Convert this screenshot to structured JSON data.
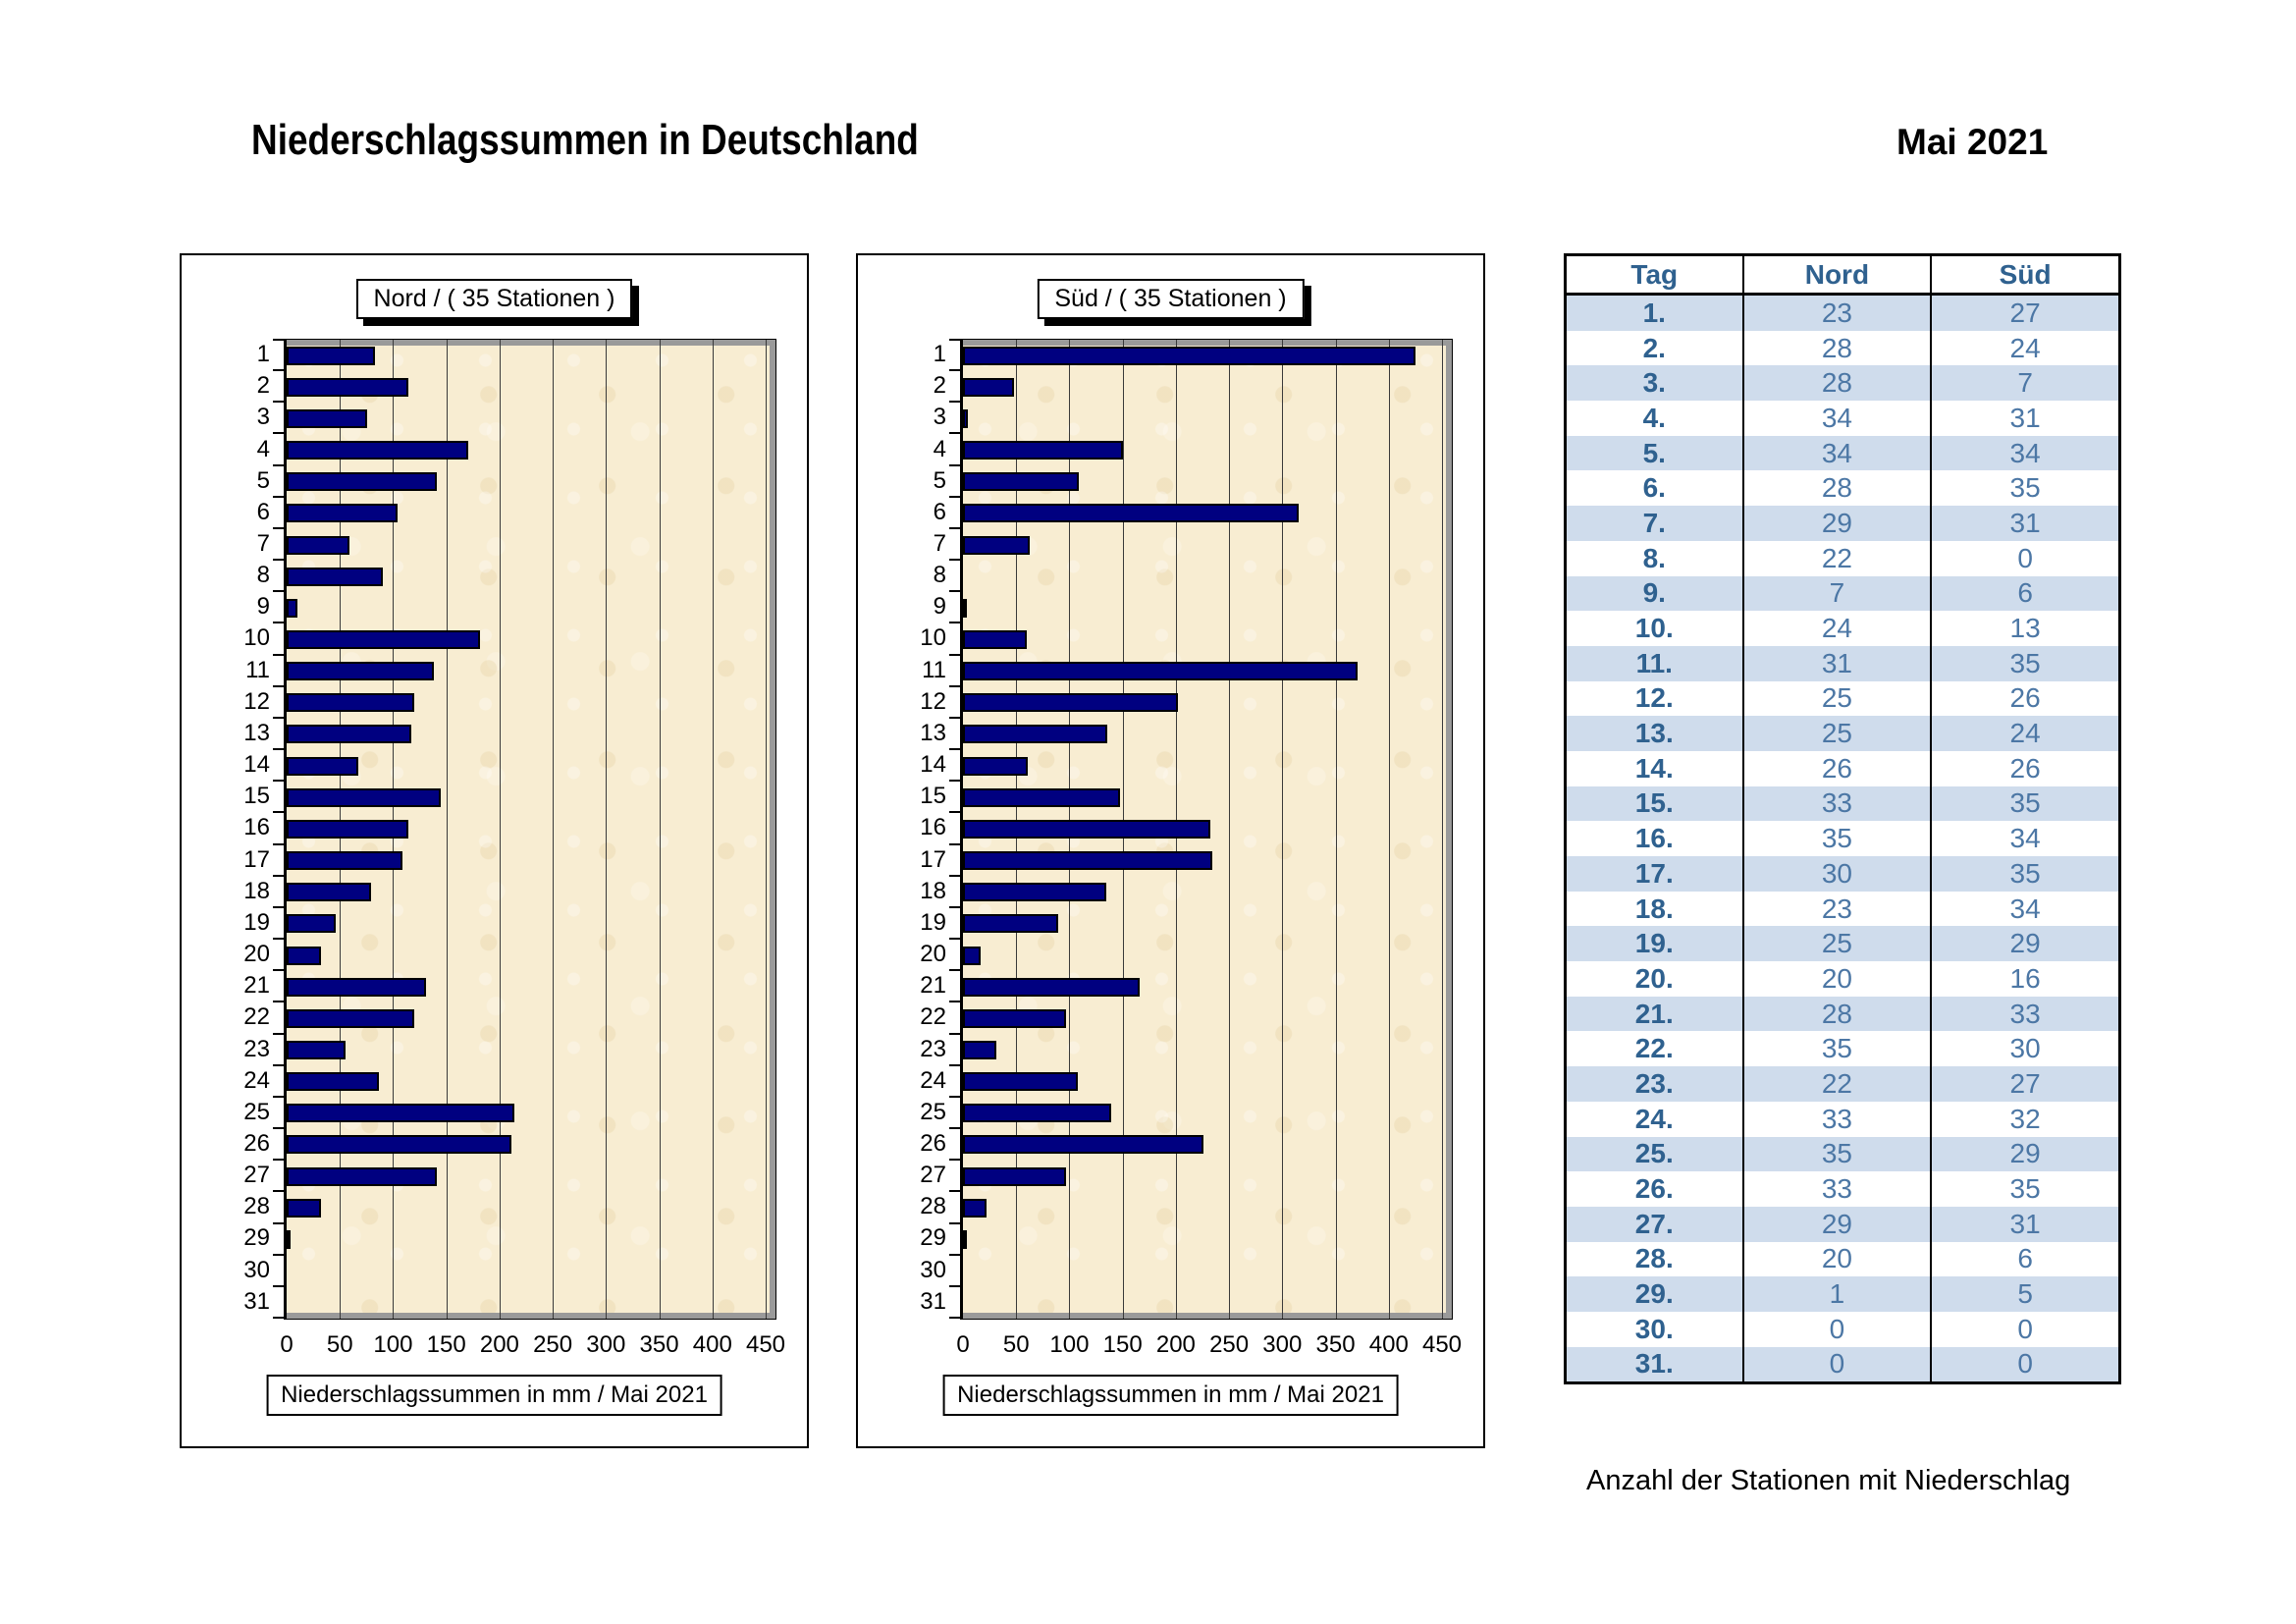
{
  "page": {
    "title": "Niederschlagssummen in Deutschland",
    "period": "Mai  2021",
    "footer_caption": "Anzahl der Stationen mit Niederschlag"
  },
  "days": [
    "1",
    "2",
    "3",
    "4",
    "5",
    "6",
    "7",
    "8",
    "9",
    "10",
    "11",
    "12",
    "13",
    "14",
    "15",
    "16",
    "17",
    "18",
    "19",
    "20",
    "21",
    "22",
    "23",
    "24",
    "25",
    "26",
    "27",
    "28",
    "29",
    "30",
    "31"
  ],
  "axis": {
    "min": 0,
    "max": 450,
    "step": 50,
    "labels": [
      "0",
      "50",
      "100",
      "150",
      "200",
      "250",
      "300",
      "350",
      "400",
      "450"
    ]
  },
  "colors": {
    "bar": "#000080",
    "bar_border": "#000000",
    "plot_background": "#F8EDD2",
    "plot_shadow": "#9A9A9A",
    "table_stripe": "#CFDCEC",
    "table_header_text": "#2F618F",
    "table_value_text": "#4C77A5"
  },
  "chart_data": [
    {
      "type": "bar",
      "orientation": "horizontal",
      "title": "Nord  /  ( 35 Stationen )",
      "xlabel": "Niederschlagssummen in mm / Mai 2021",
      "xlim": [
        0,
        450
      ],
      "x_ticks": [
        0,
        50,
        100,
        150,
        200,
        250,
        300,
        350,
        400,
        450
      ],
      "grid": true,
      "categories": [
        1,
        2,
        3,
        4,
        5,
        6,
        7,
        8,
        9,
        10,
        11,
        12,
        13,
        14,
        15,
        16,
        17,
        18,
        19,
        20,
        21,
        22,
        23,
        24,
        25,
        26,
        27,
        28,
        29,
        30,
        31
      ],
      "values": [
        83,
        114,
        76,
        171,
        141,
        104,
        59,
        90,
        10,
        182,
        138,
        120,
        117,
        67,
        145,
        114,
        109,
        79,
        46,
        32,
        131,
        120,
        55,
        87,
        214,
        211,
        141,
        32,
        4,
        0,
        0
      ]
    },
    {
      "type": "bar",
      "orientation": "horizontal",
      "title": "Süd  /  ( 35 Stationen )",
      "xlabel": "Niederschlagssummen in mm / Mai 2021",
      "xlim": [
        0,
        450
      ],
      "x_ticks": [
        0,
        50,
        100,
        150,
        200,
        250,
        300,
        350,
        400,
        450
      ],
      "grid": true,
      "categories": [
        1,
        2,
        3,
        4,
        5,
        6,
        7,
        8,
        9,
        10,
        11,
        12,
        13,
        14,
        15,
        16,
        17,
        18,
        19,
        20,
        21,
        22,
        23,
        24,
        25,
        26,
        27,
        28,
        29,
        30,
        31
      ],
      "values": [
        425,
        48,
        5,
        150,
        109,
        315,
        63,
        0,
        3,
        60,
        371,
        202,
        136,
        61,
        148,
        232,
        234,
        135,
        89,
        17,
        166,
        97,
        31,
        108,
        139,
        226,
        97,
        22,
        2,
        0,
        0
      ]
    },
    {
      "type": "table",
      "title": "Anzahl der Stationen mit Niederschlag",
      "columns": [
        "Tag",
        "Nord",
        "Süd"
      ],
      "rows": [
        [
          "1.",
          23,
          27
        ],
        [
          "2.",
          28,
          24
        ],
        [
          "3.",
          28,
          7
        ],
        [
          "4.",
          34,
          31
        ],
        [
          "5.",
          34,
          34
        ],
        [
          "6.",
          28,
          35
        ],
        [
          "7.",
          29,
          31
        ],
        [
          "8.",
          22,
          0
        ],
        [
          "9.",
          7,
          6
        ],
        [
          "10.",
          24,
          13
        ],
        [
          "11.",
          31,
          35
        ],
        [
          "12.",
          25,
          26
        ],
        [
          "13.",
          25,
          24
        ],
        [
          "14.",
          26,
          26
        ],
        [
          "15.",
          33,
          35
        ],
        [
          "16.",
          35,
          34
        ],
        [
          "17.",
          30,
          35
        ],
        [
          "18.",
          23,
          34
        ],
        [
          "19.",
          25,
          29
        ],
        [
          "20.",
          20,
          16
        ],
        [
          "21.",
          28,
          33
        ],
        [
          "22.",
          35,
          30
        ],
        [
          "23.",
          22,
          27
        ],
        [
          "24.",
          33,
          32
        ],
        [
          "25.",
          35,
          29
        ],
        [
          "26.",
          33,
          35
        ],
        [
          "27.",
          29,
          31
        ],
        [
          "28.",
          20,
          6
        ],
        [
          "29.",
          1,
          5
        ],
        [
          "30.",
          0,
          0
        ],
        [
          "31.",
          0,
          0
        ]
      ]
    }
  ],
  "table": {
    "headers": [
      "Tag",
      "Nord",
      "Süd"
    ],
    "rows": [
      {
        "tag": "1.",
        "nord": 23,
        "sued": 27
      },
      {
        "tag": "2.",
        "nord": 28,
        "sued": 24
      },
      {
        "tag": "3.",
        "nord": 28,
        "sued": 7
      },
      {
        "tag": "4.",
        "nord": 34,
        "sued": 31
      },
      {
        "tag": "5.",
        "nord": 34,
        "sued": 34
      },
      {
        "tag": "6.",
        "nord": 28,
        "sued": 35
      },
      {
        "tag": "7.",
        "nord": 29,
        "sued": 31
      },
      {
        "tag": "8.",
        "nord": 22,
        "sued": 0
      },
      {
        "tag": "9.",
        "nord": 7,
        "sued": 6
      },
      {
        "tag": "10.",
        "nord": 24,
        "sued": 13
      },
      {
        "tag": "11.",
        "nord": 31,
        "sued": 35
      },
      {
        "tag": "12.",
        "nord": 25,
        "sued": 26
      },
      {
        "tag": "13.",
        "nord": 25,
        "sued": 24
      },
      {
        "tag": "14.",
        "nord": 26,
        "sued": 26
      },
      {
        "tag": "15.",
        "nord": 33,
        "sued": 35
      },
      {
        "tag": "16.",
        "nord": 35,
        "sued": 34
      },
      {
        "tag": "17.",
        "nord": 30,
        "sued": 35
      },
      {
        "tag": "18.",
        "nord": 23,
        "sued": 34
      },
      {
        "tag": "19.",
        "nord": 25,
        "sued": 29
      },
      {
        "tag": "20.",
        "nord": 20,
        "sued": 16
      },
      {
        "tag": "21.",
        "nord": 28,
        "sued": 33
      },
      {
        "tag": "22.",
        "nord": 35,
        "sued": 30
      },
      {
        "tag": "23.",
        "nord": 22,
        "sued": 27
      },
      {
        "tag": "24.",
        "nord": 33,
        "sued": 32
      },
      {
        "tag": "25.",
        "nord": 35,
        "sued": 29
      },
      {
        "tag": "26.",
        "nord": 33,
        "sued": 35
      },
      {
        "tag": "27.",
        "nord": 29,
        "sued": 31
      },
      {
        "tag": "28.",
        "nord": 20,
        "sued": 6
      },
      {
        "tag": "29.",
        "nord": 1,
        "sued": 5
      },
      {
        "tag": "30.",
        "nord": 0,
        "sued": 0
      },
      {
        "tag": "31.",
        "nord": 0,
        "sued": 0
      }
    ]
  }
}
